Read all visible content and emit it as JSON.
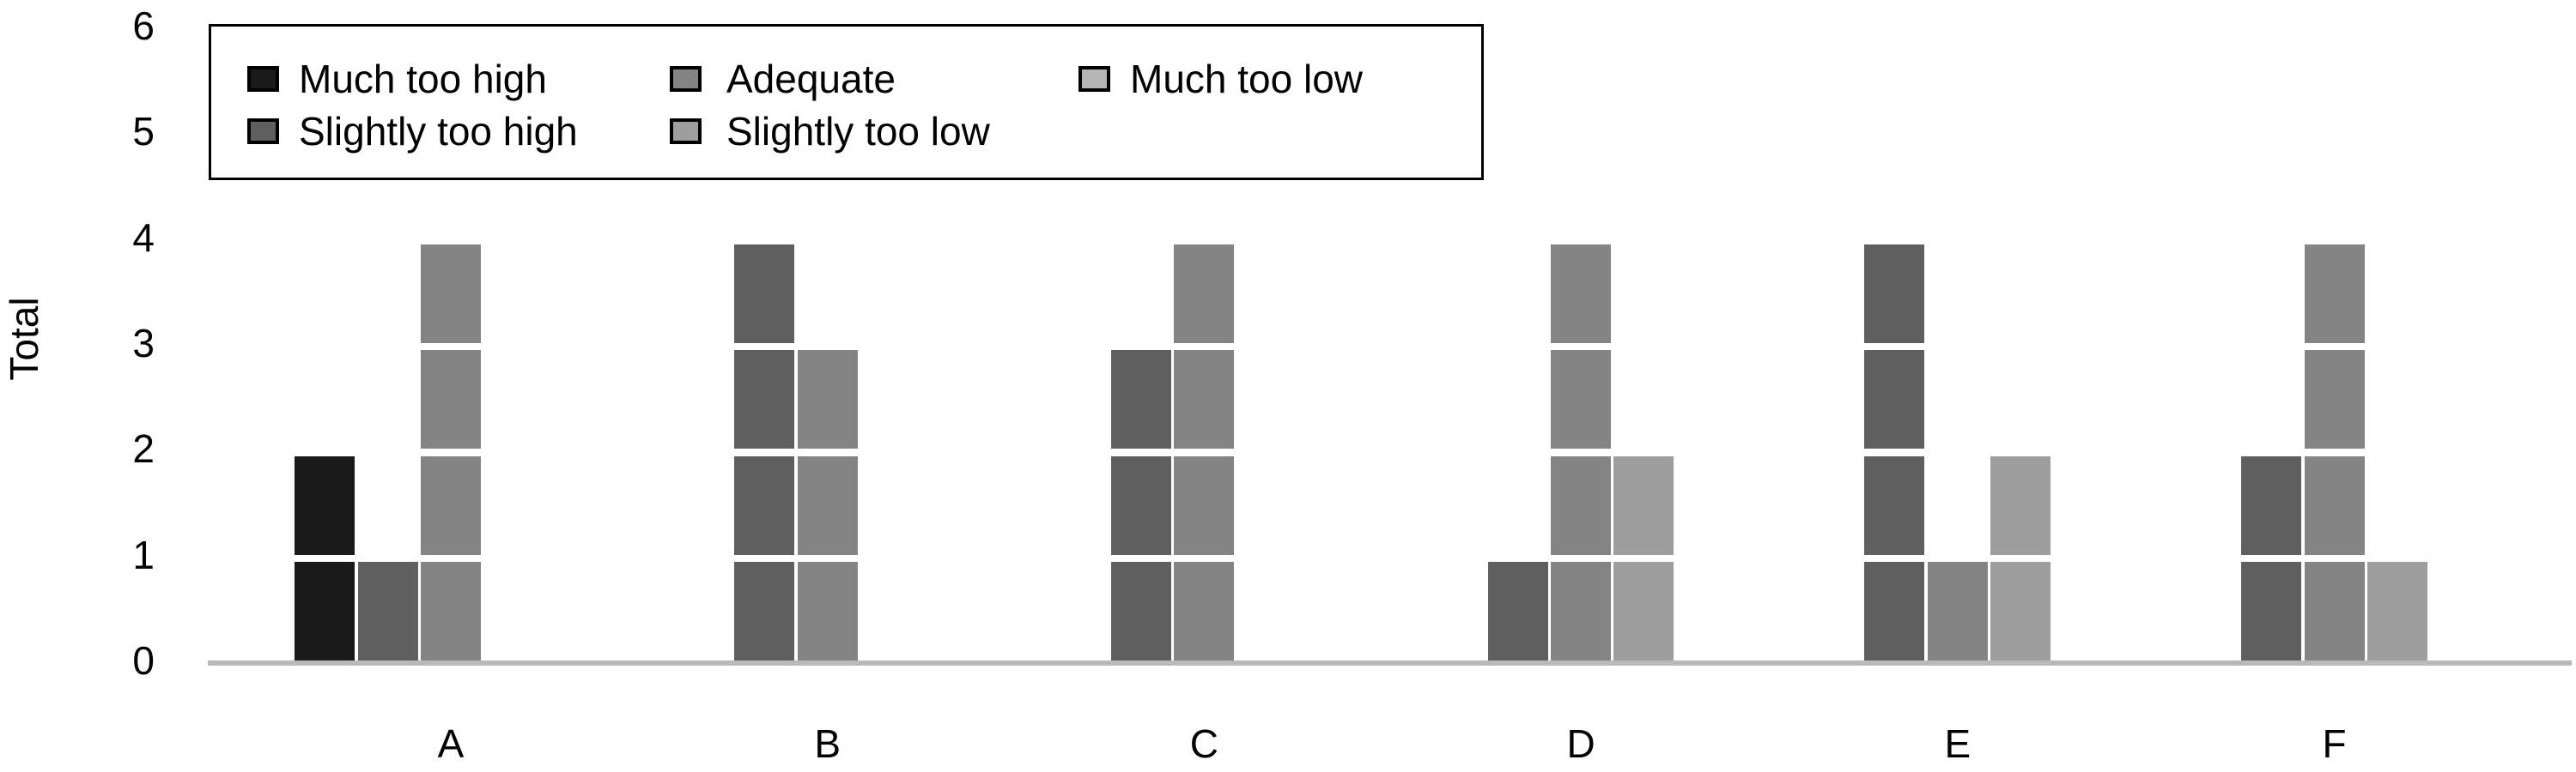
{
  "chart_data": {
    "type": "bar",
    "subtype": "grouped-unit-stacked",
    "title": "",
    "xlabel": "",
    "ylabel": "Total",
    "categories": [
      "A",
      "B",
      "C",
      "D",
      "E",
      "F"
    ],
    "series": [
      {
        "name": "Much too high",
        "color": "#1a1a1a",
        "values": [
          2,
          0,
          0,
          0,
          0,
          0
        ]
      },
      {
        "name": "Slightly too high",
        "color": "#5f5f5f",
        "values": [
          1,
          4,
          3,
          1,
          4,
          2
        ]
      },
      {
        "name": "Adequate",
        "color": "#848484",
        "values": [
          4,
          3,
          4,
          4,
          1,
          4
        ]
      },
      {
        "name": "Slightly too low",
        "color": "#9e9e9e",
        "values": [
          0,
          0,
          0,
          2,
          2,
          1
        ]
      },
      {
        "name": "Much too low",
        "color": "#b5b5b5",
        "values": [
          0,
          0,
          0,
          0,
          0,
          0
        ]
      }
    ],
    "ylim": [
      0,
      6
    ],
    "yticks": [
      0,
      1,
      2,
      3,
      4,
      5,
      6
    ],
    "grid": false,
    "legend_position": "top-left",
    "legend_rows": 2,
    "legend_columns": 3,
    "axis_line_color": "#b9b9b9",
    "background_color": "#ffffff",
    "text_color": "#000000"
  }
}
